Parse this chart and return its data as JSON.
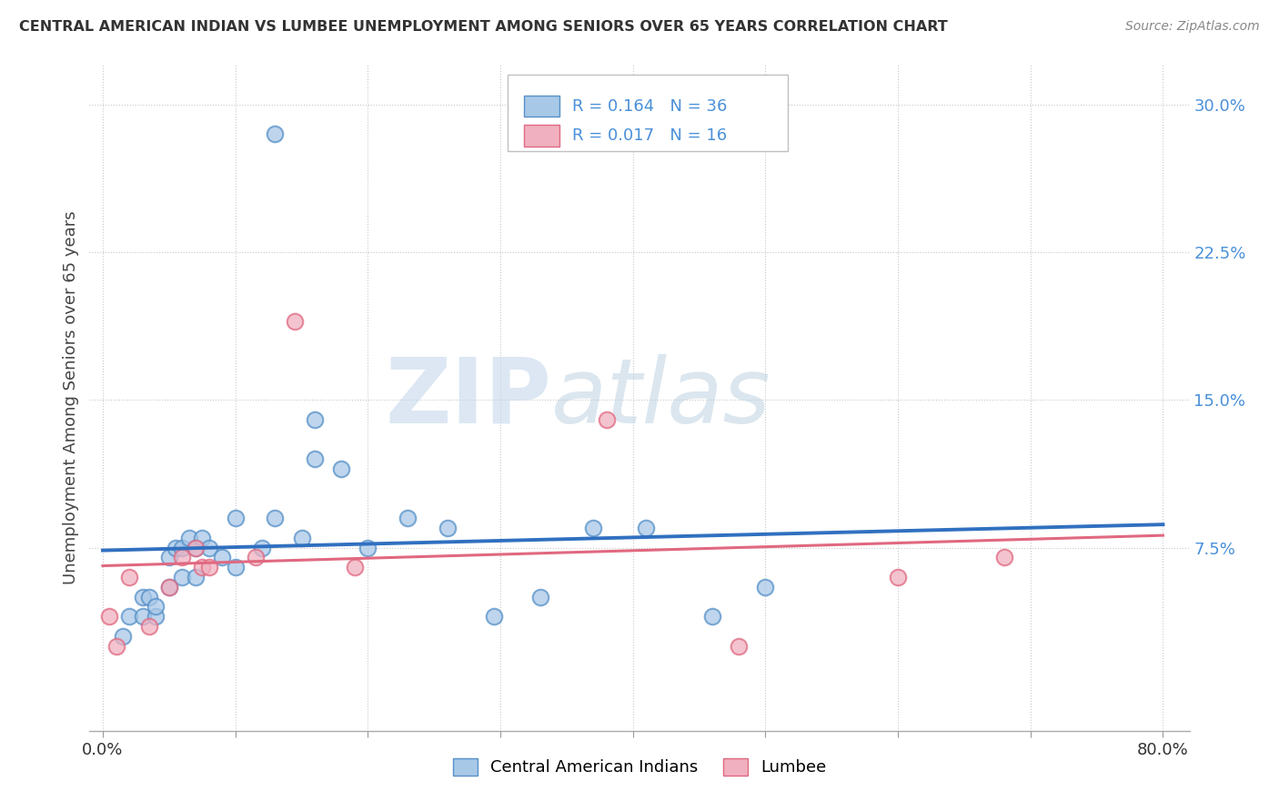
{
  "title": "CENTRAL AMERICAN INDIAN VS LUMBEE UNEMPLOYMENT AMONG SENIORS OVER 65 YEARS CORRELATION CHART",
  "source": "Source: ZipAtlas.com",
  "ylabel": "Unemployment Among Seniors over 65 years",
  "xlim": [
    -0.01,
    0.82
  ],
  "ylim": [
    -0.018,
    0.32
  ],
  "yticks_right": [
    0.075,
    0.15,
    0.225,
    0.3
  ],
  "yticklabels_right": [
    "7.5%",
    "15.0%",
    "22.5%",
    "30.0%"
  ],
  "blue_color": "#a8c8e8",
  "pink_color": "#f0b0c0",
  "blue_edge_color": "#5590c8",
  "pink_edge_color": "#e06880",
  "blue_line_color": "#3070c0",
  "pink_line_color": "#e06880",
  "watermark_zip": "ZIP",
  "watermark_atlas": "atlas",
  "legend_text1": "R = 0.164   N = 36",
  "legend_text2": "R = 0.017   N = 16",
  "legend_label1": "Central American Indians",
  "legend_label2": "Lumbee",
  "blue_x": [
    0.015,
    0.02,
    0.03,
    0.03,
    0.035,
    0.04,
    0.04,
    0.05,
    0.05,
    0.055,
    0.06,
    0.06,
    0.065,
    0.07,
    0.07,
    0.075,
    0.08,
    0.09,
    0.1,
    0.1,
    0.12,
    0.13,
    0.15,
    0.16,
    0.16,
    0.18,
    0.2,
    0.23,
    0.26,
    0.295,
    0.33,
    0.37,
    0.41,
    0.46,
    0.5,
    0.13
  ],
  "blue_y": [
    0.03,
    0.04,
    0.04,
    0.05,
    0.05,
    0.04,
    0.045,
    0.055,
    0.07,
    0.075,
    0.06,
    0.075,
    0.08,
    0.06,
    0.075,
    0.08,
    0.075,
    0.07,
    0.065,
    0.09,
    0.075,
    0.09,
    0.08,
    0.12,
    0.14,
    0.115,
    0.075,
    0.09,
    0.085,
    0.04,
    0.05,
    0.085,
    0.085,
    0.04,
    0.055,
    0.285
  ],
  "pink_x": [
    0.005,
    0.01,
    0.02,
    0.035,
    0.05,
    0.06,
    0.07,
    0.075,
    0.08,
    0.115,
    0.145,
    0.19,
    0.38,
    0.48,
    0.6,
    0.68
  ],
  "pink_y": [
    0.04,
    0.025,
    0.06,
    0.035,
    0.055,
    0.07,
    0.075,
    0.065,
    0.065,
    0.07,
    0.19,
    0.065,
    0.14,
    0.025,
    0.06,
    0.07
  ],
  "background_color": "#ffffff",
  "grid_color": "#c8c8c8"
}
